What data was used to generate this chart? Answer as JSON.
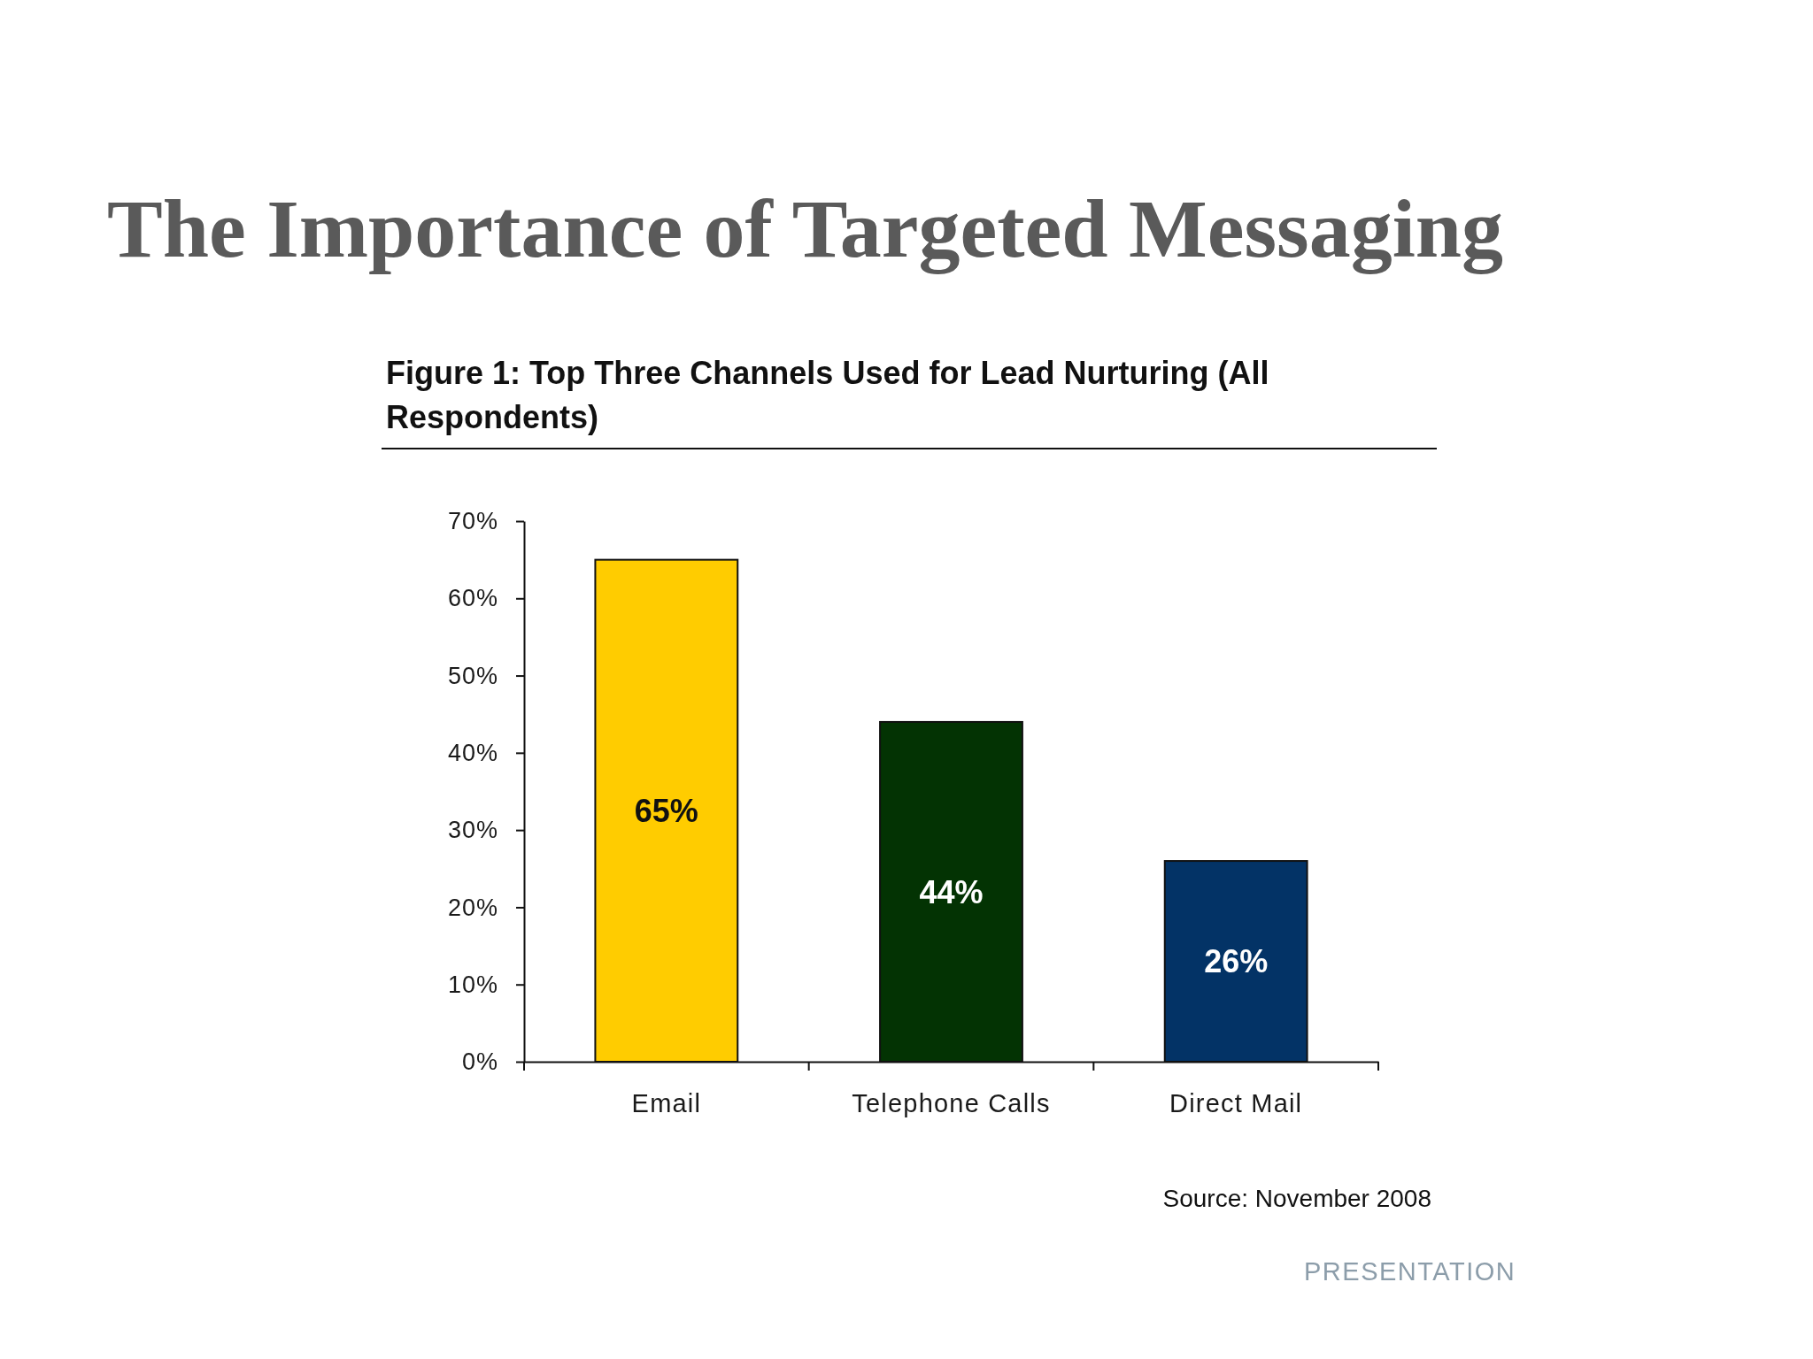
{
  "chart_data": {
    "type": "bar",
    "title": "The Importance of Targeted Messaging",
    "subtitle": "Figure 1: Top Three Channels Used for Lead Nurturing (All Respondents)",
    "categories": [
      "Email",
      "Telephone Calls",
      "Direct Mail"
    ],
    "values": [
      65,
      44,
      26
    ],
    "colors": [
      "#ffcc00",
      "#033303",
      "#033366"
    ],
    "value_labels": [
      "65%",
      "44%",
      "26%"
    ],
    "ylim": [
      0,
      70
    ],
    "yticks": [
      {
        "value": 0,
        "label": "0%"
      },
      {
        "value": 10,
        "label": "10%"
      },
      {
        "value": 20,
        "label": "20%"
      },
      {
        "value": 30,
        "label": "30%"
      },
      {
        "value": 40,
        "label": "40%"
      },
      {
        "value": 50,
        "label": "50%"
      },
      {
        "value": 60,
        "label": "60%"
      },
      {
        "value": 70,
        "label": "70%"
      }
    ],
    "annotations": [
      "Source: November 2008",
      "PRESENTATION"
    ]
  }
}
